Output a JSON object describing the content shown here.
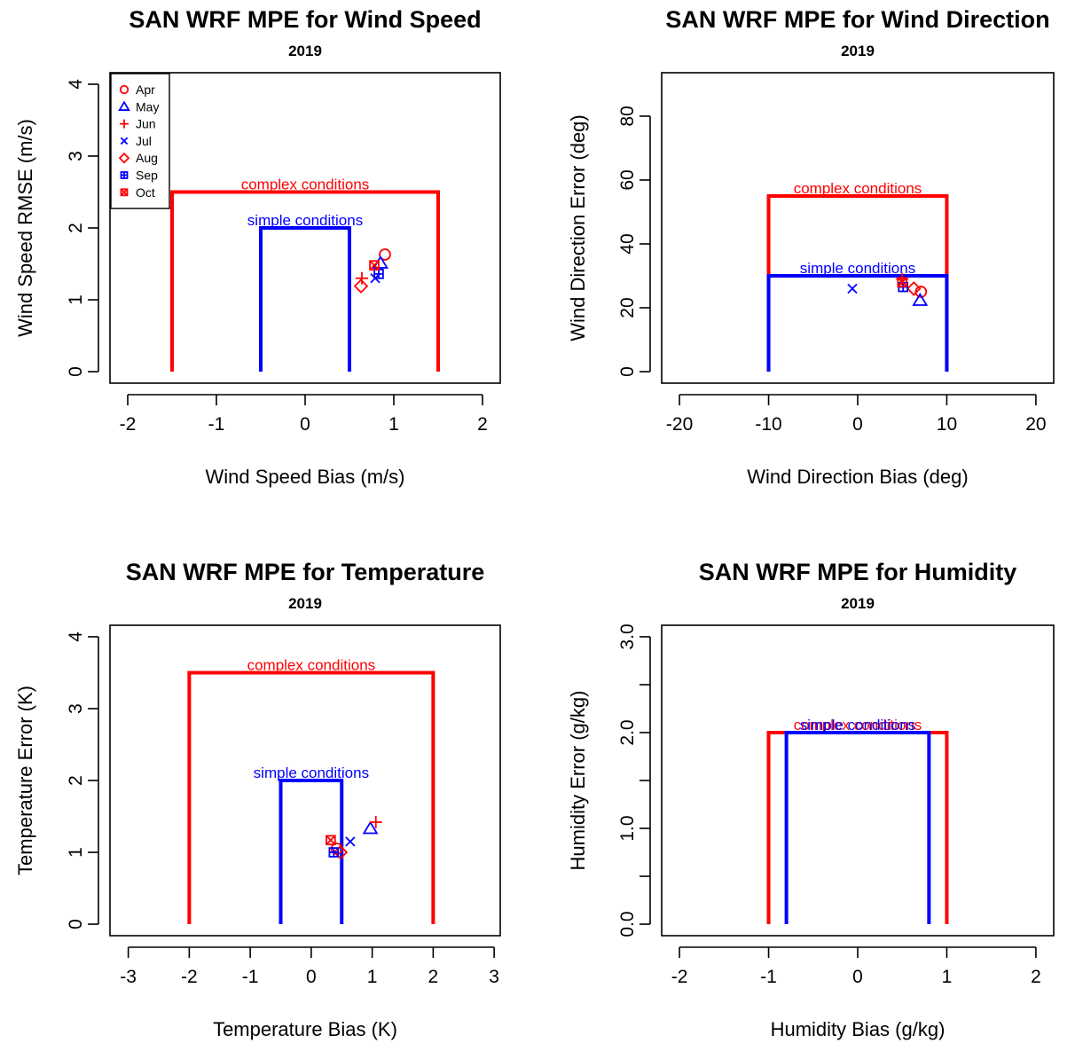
{
  "colors": {
    "red": "#ff0000",
    "blue": "#0000ff",
    "axis": "#000000"
  },
  "chart_data": [
    {
      "type": "scatter",
      "title": "SAN WRF MPE for Wind Speed",
      "subtitle": "2019",
      "xlabel": "Wind Speed Bias (m/s)",
      "ylabel": "Wind Speed RMSE (m/s)",
      "xlim": [
        -2.2,
        2.2
      ],
      "ylim": [
        -0.16,
        4.16
      ],
      "xticks": [
        -2,
        -1,
        0,
        1,
        2
      ],
      "yticks": [
        0,
        1,
        2,
        3,
        4
      ],
      "xtick_labels": [
        "-2",
        "-1",
        "0",
        "1",
        "2"
      ],
      "ytick_labels": [
        "0",
        "1",
        "2",
        "3",
        "4"
      ],
      "legend": {
        "position": "top-left",
        "entries": [
          {
            "label": "Apr",
            "marker": "circle",
            "color": "red"
          },
          {
            "label": "May",
            "marker": "triangle",
            "color": "blue"
          },
          {
            "label": "Jun",
            "marker": "plus",
            "color": "red"
          },
          {
            "label": "Jul",
            "marker": "cross",
            "color": "blue"
          },
          {
            "label": "Aug",
            "marker": "diamond",
            "color": "red"
          },
          {
            "label": "Sep",
            "marker": "square-plus",
            "color": "blue"
          },
          {
            "label": "Oct",
            "marker": "square-cross",
            "color": "red"
          }
        ]
      },
      "benchmarks": [
        {
          "label": "complex conditions",
          "color": "red",
          "bias": 1.5,
          "error": 2.5
        },
        {
          "label": "simple conditions",
          "color": "blue",
          "bias": 0.5,
          "error": 2.0
        }
      ],
      "points": [
        {
          "month": "Apr",
          "marker": "circle",
          "color": "red",
          "x": 0.9,
          "y": 1.63
        },
        {
          "month": "May",
          "marker": "triangle",
          "color": "blue",
          "x": 0.85,
          "y": 1.51
        },
        {
          "month": "Jun",
          "marker": "plus",
          "color": "red",
          "x": 0.64,
          "y": 1.3
        },
        {
          "month": "Jul",
          "marker": "cross",
          "color": "blue",
          "x": 0.79,
          "y": 1.3
        },
        {
          "month": "Aug",
          "marker": "diamond",
          "color": "red",
          "x": 0.63,
          "y": 1.19
        },
        {
          "month": "Sep",
          "marker": "square-plus",
          "color": "blue",
          "x": 0.83,
          "y": 1.36
        },
        {
          "month": "Oct",
          "marker": "square-cross",
          "color": "red",
          "x": 0.78,
          "y": 1.48
        }
      ]
    },
    {
      "type": "scatter",
      "title": "SAN WRF MPE for Wind Direction",
      "subtitle": "2019",
      "xlabel": "Wind Direction Bias (deg)",
      "ylabel": "Wind Direction Error (deg)",
      "xlim": [
        -22,
        22
      ],
      "ylim": [
        -3.6,
        93.6
      ],
      "xticks": [
        -20,
        -10,
        0,
        10,
        20
      ],
      "yticks": [
        0,
        20,
        40,
        60,
        80
      ],
      "xtick_labels": [
        "-20",
        "-10",
        "0",
        "10",
        "20"
      ],
      "ytick_labels": [
        "0",
        "20",
        "40",
        "60",
        "80"
      ],
      "benchmarks": [
        {
          "label": "complex conditions",
          "color": "red",
          "bias": 10,
          "error": 55
        },
        {
          "label": "simple conditions",
          "color": "blue",
          "bias": 10,
          "error": 30
        }
      ],
      "points": [
        {
          "month": "Apr",
          "marker": "circle",
          "color": "red",
          "x": 7.1,
          "y": 25
        },
        {
          "month": "May",
          "marker": "triangle",
          "color": "blue",
          "x": 7.0,
          "y": 22.3
        },
        {
          "month": "Jun",
          "marker": "plus",
          "color": "red",
          "x": 5.0,
          "y": 29
        },
        {
          "month": "Jul",
          "marker": "cross",
          "color": "blue",
          "x": -0.6,
          "y": 26
        },
        {
          "month": "Aug",
          "marker": "diamond",
          "color": "red",
          "x": 6.3,
          "y": 26
        },
        {
          "month": "Sep",
          "marker": "square-plus",
          "color": "blue",
          "x": 5.1,
          "y": 26.5
        },
        {
          "month": "Oct",
          "marker": "square-cross",
          "color": "red",
          "x": 5.0,
          "y": 28
        }
      ]
    },
    {
      "type": "scatter",
      "title": "SAN WRF MPE for Temperature",
      "subtitle": "2019",
      "xlabel": "Temperature Bias (K)",
      "ylabel": "Temperature Error (K)",
      "xlim": [
        -3.3,
        3.1
      ],
      "ylim": [
        -0.16,
        4.16
      ],
      "xticks": [
        -3,
        -2,
        -1,
        0,
        1,
        2,
        3
      ],
      "yticks": [
        0,
        1,
        2,
        3,
        4
      ],
      "xtick_labels": [
        "-3",
        "-2",
        "-1",
        "0",
        "1",
        "2",
        "3"
      ],
      "ytick_labels": [
        "0",
        "1",
        "2",
        "3",
        "4"
      ],
      "benchmarks": [
        {
          "label": "complex conditions",
          "color": "red",
          "bias": 2.0,
          "error": 3.5
        },
        {
          "label": "simple conditions",
          "color": "blue",
          "bias": 0.5,
          "error": 2.0
        }
      ],
      "points": [
        {
          "month": "Apr",
          "marker": "circle",
          "color": "red",
          "x": 0.42,
          "y": 1.05
        },
        {
          "month": "May",
          "marker": "triangle",
          "color": "blue",
          "x": 0.97,
          "y": 1.33
        },
        {
          "month": "Jun",
          "marker": "plus",
          "color": "red",
          "x": 1.06,
          "y": 1.42
        },
        {
          "month": "Jul",
          "marker": "cross",
          "color": "blue",
          "x": 0.64,
          "y": 1.15
        },
        {
          "month": "Aug",
          "marker": "diamond",
          "color": "red",
          "x": 0.48,
          "y": 1.0
        },
        {
          "month": "Sep",
          "marker": "square-plus",
          "color": "blue",
          "x": 0.37,
          "y": 1.0
        },
        {
          "month": "Oct",
          "marker": "square-cross",
          "color": "red",
          "x": 0.32,
          "y": 1.17
        }
      ]
    },
    {
      "type": "scatter",
      "title": "SAN WRF MPE for Humidity",
      "subtitle": "2019",
      "xlabel": "Humidity Bias (g/kg)",
      "ylabel": "Humidity Error (g/kg)",
      "xlim": [
        -2.2,
        2.2
      ],
      "ylim": [
        -0.12,
        3.12
      ],
      "xticks": [
        -2,
        -1,
        0,
        1,
        2
      ],
      "yticks": [
        0,
        0.5,
        1,
        1.5,
        2,
        2.5,
        3
      ],
      "xtick_labels": [
        "-2",
        "-1",
        "0",
        "1",
        "2"
      ],
      "ytick_labels": [
        "0.0",
        "",
        "1.0",
        "",
        "2.0",
        "",
        "3.0"
      ],
      "benchmarks": [
        {
          "label": "complex conditions",
          "color": "red",
          "bias": 1.0,
          "error": 2.0
        },
        {
          "label": "simple conditions",
          "color": "blue",
          "bias": 0.8,
          "error": 2.0
        }
      ],
      "points": []
    }
  ]
}
